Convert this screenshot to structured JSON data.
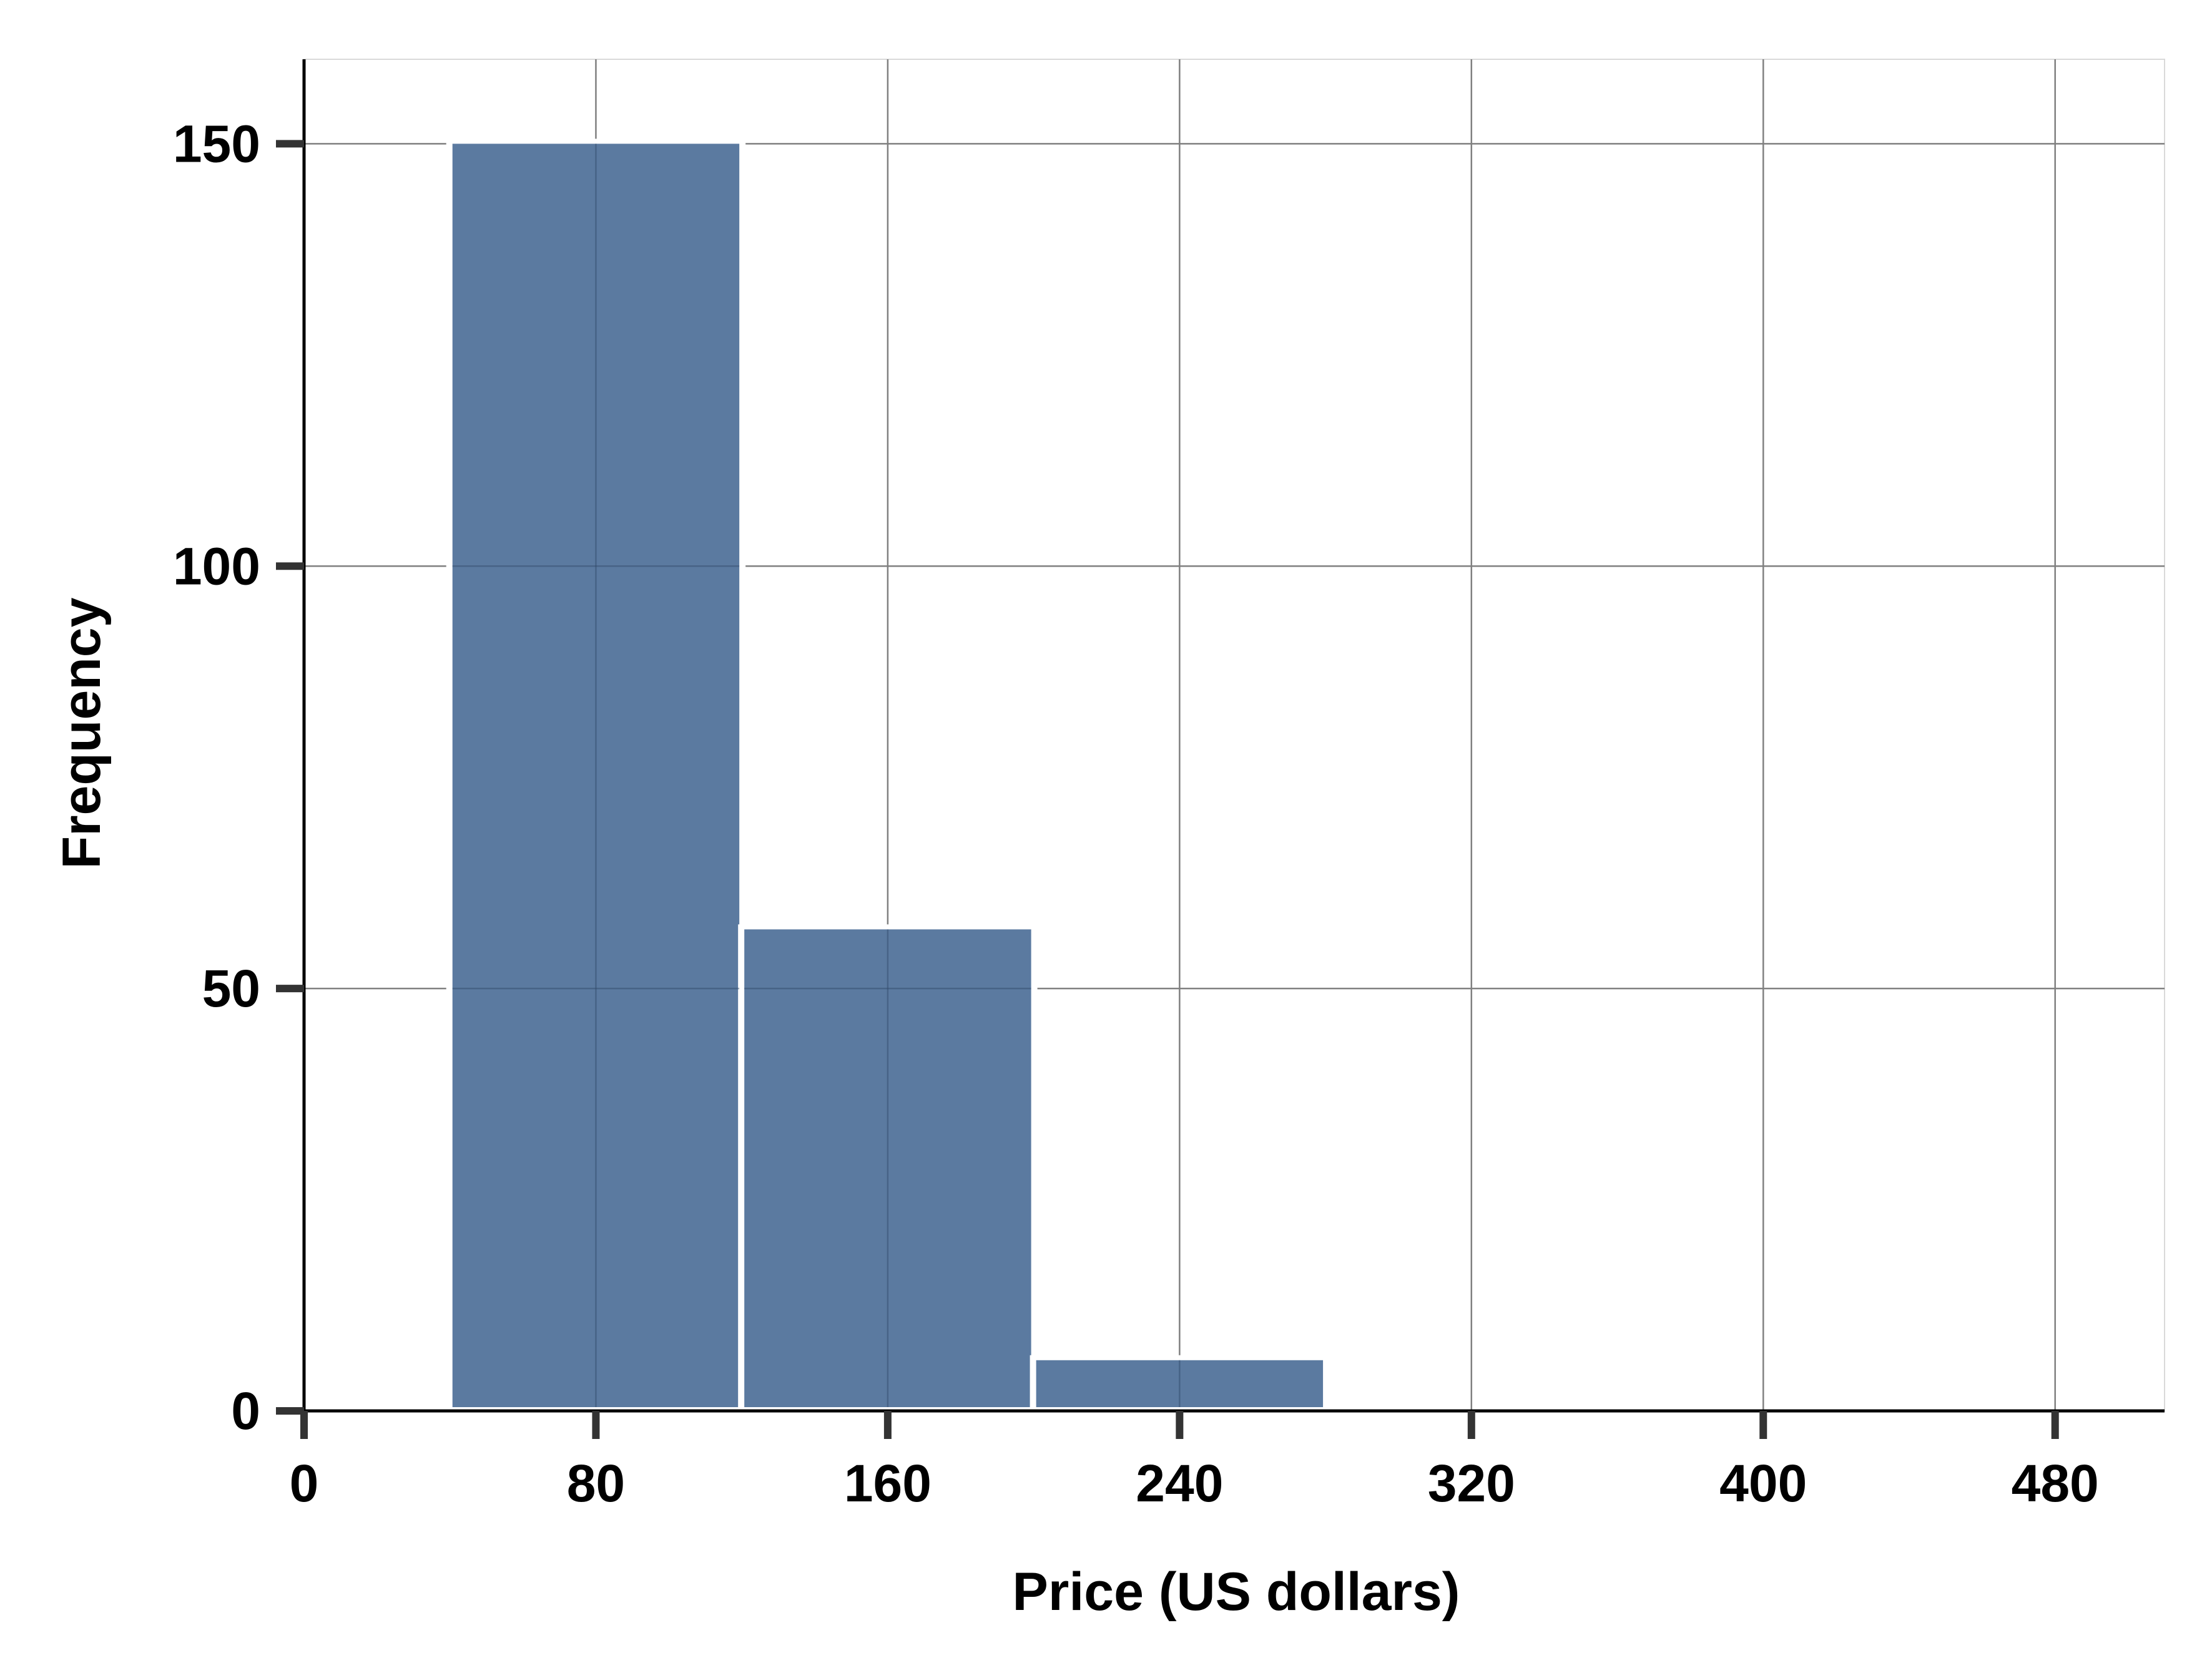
{
  "chart_data": {
    "type": "bar",
    "title": "",
    "xlabel": "Price (US dollars)",
    "ylabel": "Frequency",
    "xlim": [
      0,
      510
    ],
    "ylim": [
      0,
      160
    ],
    "xticks": [
      0,
      80,
      160,
      240,
      320,
      400,
      480
    ],
    "yticks": [
      0,
      50,
      100,
      150
    ],
    "grid": true,
    "legend": "none",
    "bins": [
      {
        "start": 40,
        "end": 120,
        "value": 150
      },
      {
        "start": 120,
        "end": 200,
        "value": 57
      },
      {
        "start": 200,
        "end": 280,
        "value": 6
      }
    ],
    "colors": {
      "bar": "#5b7aa0",
      "grid": "#808080",
      "axis": "#000000",
      "tick": "#333333"
    }
  }
}
